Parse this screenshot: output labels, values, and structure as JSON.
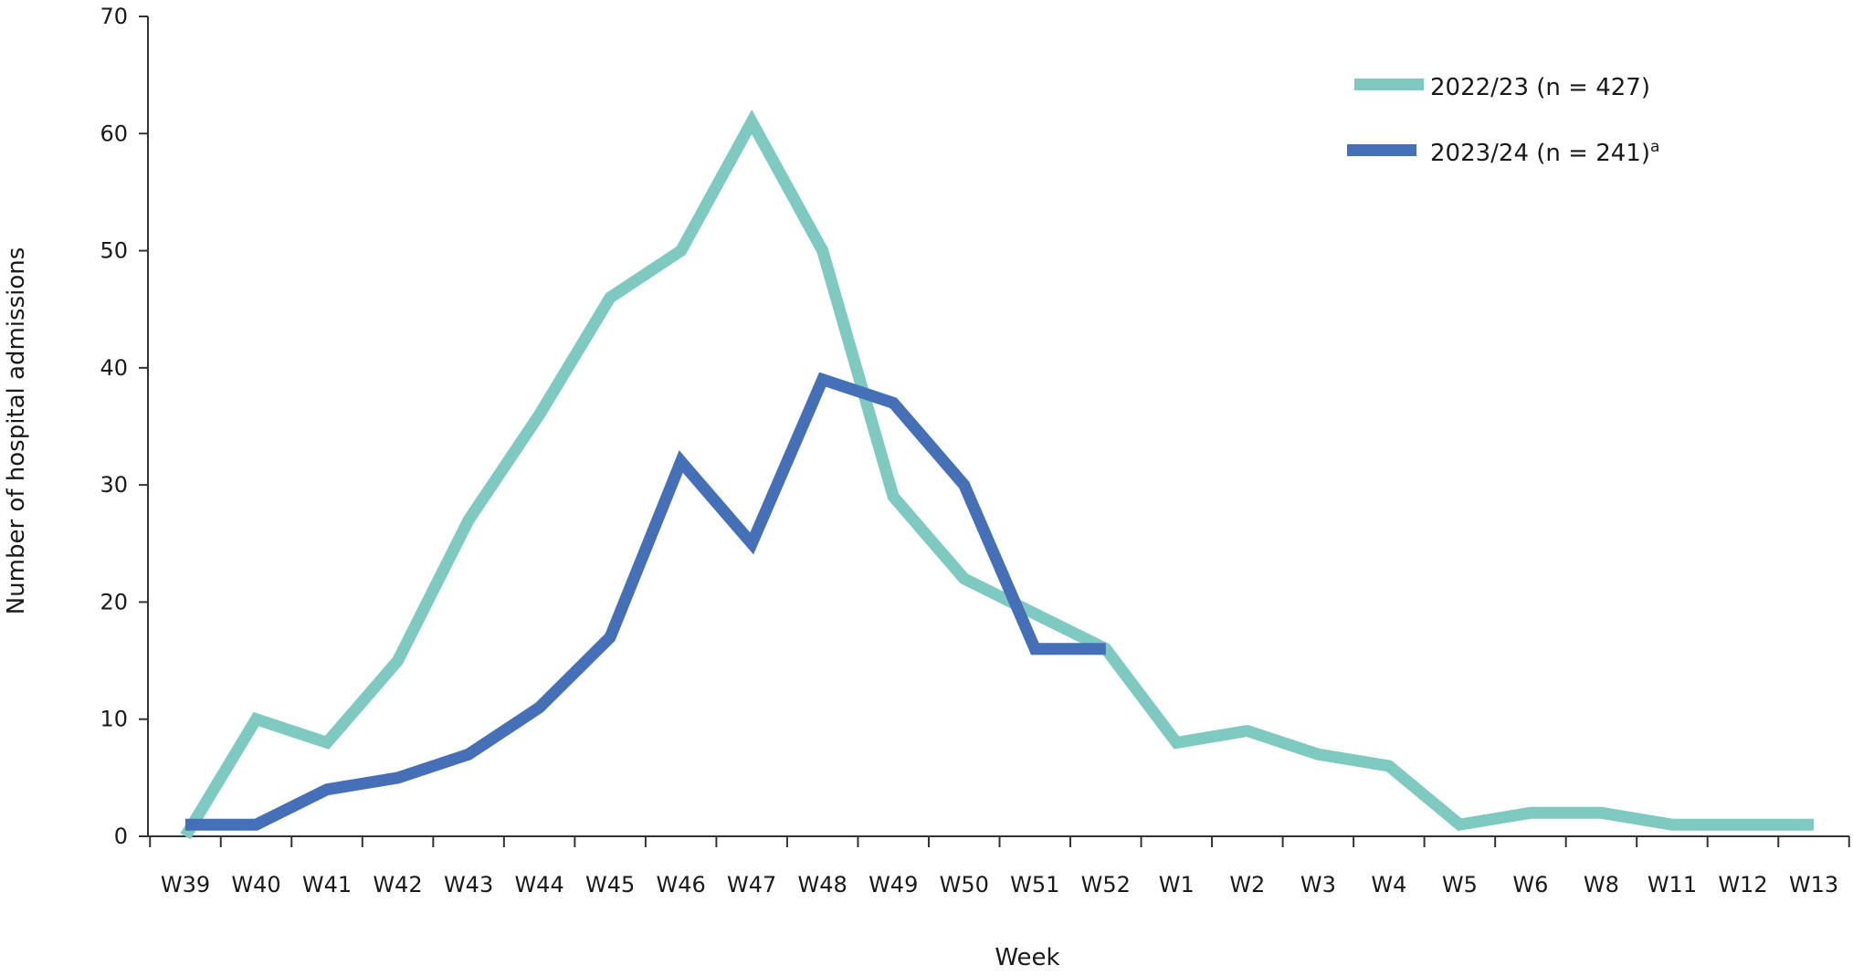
{
  "chart_data": {
    "type": "line",
    "title": "",
    "xlabel": "Week",
    "ylabel": "Number of hospital admissions",
    "ylim": [
      0,
      70
    ],
    "yticks": [
      0,
      10,
      20,
      30,
      40,
      50,
      60,
      70
    ],
    "grid": false,
    "legend_position": "top-right",
    "categories": [
      "W39",
      "W40",
      "W41",
      "W42",
      "W43",
      "W44",
      "W45",
      "W46",
      "W47",
      "W48",
      "W49",
      "W50",
      "W51",
      "W52",
      "W1",
      "W2",
      "W3",
      "W4",
      "W5",
      "W6",
      "W8",
      "W11",
      "W12",
      "W13"
    ],
    "series": [
      {
        "name": "2022/23 (n = 427)",
        "footnote": "",
        "color": "#7ecac0",
        "values": [
          0,
          10,
          8,
          15,
          27,
          36,
          46,
          50,
          61,
          50,
          29,
          22,
          19,
          16,
          8,
          9,
          7,
          6,
          1,
          2,
          2,
          1,
          1,
          1
        ]
      },
      {
        "name": "2023/24 (n = 241)",
        "footnote": "a",
        "color": "#4570b8",
        "values": [
          1,
          1,
          4,
          5,
          7,
          11,
          17,
          32,
          25,
          39,
          37,
          30,
          16,
          16,
          null,
          null,
          null,
          null,
          null,
          null,
          null,
          null,
          null,
          null
        ]
      }
    ]
  }
}
